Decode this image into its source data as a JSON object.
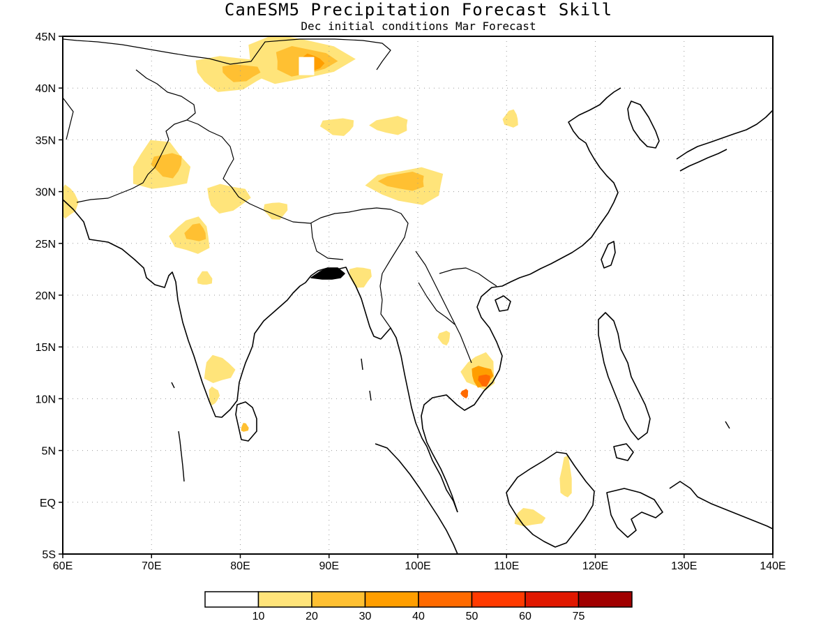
{
  "title": "CanESM5 Precipitation Forecast Skill",
  "subtitle": "Dec initial conditions  Mar Forecast",
  "chart_data": {
    "type": "heatmap",
    "x_ticks": [
      "60E",
      "70E",
      "80E",
      "90E",
      "100E",
      "110E",
      "120E",
      "130E",
      "140E"
    ],
    "y_ticks": [
      "45N",
      "40N",
      "35N",
      "30N",
      "25N",
      "20N",
      "15N",
      "10N",
      "5N",
      "EQ",
      "5S"
    ],
    "xlim": [
      60,
      140
    ],
    "ylim": [
      -5,
      45
    ],
    "grid": true,
    "legend": {
      "position": "bottom",
      "colors": [
        "#ffffff",
        "#ffe47a",
        "#ffc032",
        "#ff9e00",
        "#ff6a00",
        "#ff3a00",
        "#e01800",
        "#a00000"
      ],
      "labels": [
        "10",
        "20",
        "30",
        "40",
        "50",
        "60",
        "75"
      ]
    },
    "skill_regions": [
      {
        "lon": 86,
        "lat": 42.8,
        "rlon": 7,
        "rlat": 2.6,
        "level": 1
      },
      {
        "lon": 87,
        "lat": 42.6,
        "rlon": 4,
        "rlat": 1.6,
        "level": 2
      },
      {
        "lon": 88,
        "lat": 42.4,
        "rlon": 1.5,
        "rlat": 1.0,
        "level": 3
      },
      {
        "lon": 79,
        "lat": 41.5,
        "rlon": 5,
        "rlat": 2.0,
        "level": 1
      },
      {
        "lon": 80,
        "lat": 41.5,
        "rlon": 2.5,
        "rlat": 1.0,
        "level": 2
      },
      {
        "lon": 91,
        "lat": 36.3,
        "rlon": 2.2,
        "rlat": 1.0,
        "level": 1
      },
      {
        "lon": 97,
        "lat": 36.4,
        "rlon": 2.5,
        "rlat": 1.0,
        "level": 1
      },
      {
        "lon": 110.5,
        "lat": 37.0,
        "rlon": 1.0,
        "rlat": 1.0,
        "level": 1
      },
      {
        "lon": 71,
        "lat": 32.4,
        "rlon": 3.8,
        "rlat": 2.8,
        "level": 1
      },
      {
        "lon": 71.8,
        "lat": 32.6,
        "rlon": 2.0,
        "rlat": 1.4,
        "level": 2
      },
      {
        "lon": 60.6,
        "lat": 29.0,
        "rlon": 1.2,
        "rlat": 1.8,
        "level": 1
      },
      {
        "lon": 78.5,
        "lat": 29.4,
        "rlon": 2.8,
        "rlat": 1.6,
        "level": 1
      },
      {
        "lon": 84,
        "lat": 28.2,
        "rlon": 1.6,
        "rlat": 1.0,
        "level": 1
      },
      {
        "lon": 99,
        "lat": 30.6,
        "rlon": 5.0,
        "rlat": 2.0,
        "level": 1
      },
      {
        "lon": 98.5,
        "lat": 31.0,
        "rlon": 3.0,
        "rlat": 1.0,
        "level": 2
      },
      {
        "lon": 74.5,
        "lat": 25.7,
        "rlon": 2.6,
        "rlat": 2.0,
        "level": 1
      },
      {
        "lon": 75,
        "lat": 26.0,
        "rlon": 1.4,
        "rlat": 1.0,
        "level": 2
      },
      {
        "lon": 76,
        "lat": 21.6,
        "rlon": 1.0,
        "rlat": 0.8,
        "level": 1
      },
      {
        "lon": 77.5,
        "lat": 12.8,
        "rlon": 2.0,
        "rlat": 1.5,
        "level": 1
      },
      {
        "lon": 77.0,
        "lat": 10.3,
        "rlon": 0.7,
        "rlat": 1.0,
        "level": 1
      },
      {
        "lon": 80.5,
        "lat": 7.2,
        "rlon": 0.5,
        "rlat": 0.5,
        "level": 2
      },
      {
        "lon": 93.5,
        "lat": 21.8,
        "rlon": 1.5,
        "rlat": 1.2,
        "level": 1
      },
      {
        "lon": 103,
        "lat": 15.9,
        "rlon": 0.8,
        "rlat": 0.8,
        "level": 1
      },
      {
        "lon": 107,
        "lat": 12.6,
        "rlon": 2.2,
        "rlat": 2.0,
        "level": 1
      },
      {
        "lon": 107.2,
        "lat": 12.2,
        "rlon": 1.4,
        "rlat": 1.2,
        "level": 3
      },
      {
        "lon": 107.5,
        "lat": 11.8,
        "rlon": 0.8,
        "rlat": 0.7,
        "level": 4
      },
      {
        "lon": 105.3,
        "lat": 10.5,
        "rlon": 0.5,
        "rlat": 0.5,
        "level": 4
      },
      {
        "lon": 116.7,
        "lat": 2.3,
        "rlon": 0.8,
        "rlat": 2.4,
        "level": 1
      },
      {
        "lon": 112.5,
        "lat": -1.5,
        "rlon": 2.0,
        "rlat": 1.0,
        "level": 1
      }
    ]
  }
}
